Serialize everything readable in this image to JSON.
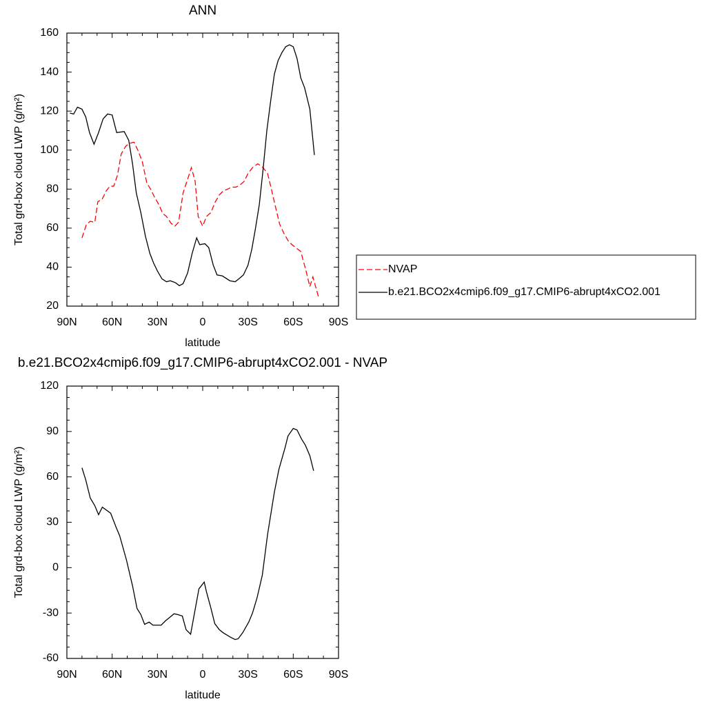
{
  "chart_data": [
    {
      "type": "line",
      "title": "ANN",
      "x_label": "latitude",
      "y_label": "Total grd-box cloud LWP (g/m²)",
      "xlim": [
        90,
        -90
      ],
      "xticks": [
        {
          "value": 90,
          "label": "90N"
        },
        {
          "value": 60,
          "label": "60N"
        },
        {
          "value": 30,
          "label": "30N"
        },
        0,
        {
          "value": -30,
          "label": "30S"
        },
        {
          "value": -60,
          "label": "60S"
        },
        {
          "value": -90,
          "label": "90S"
        }
      ],
      "ylim": [
        20,
        160
      ],
      "yticks": [
        20,
        40,
        60,
        80,
        100,
        120,
        140,
        160
      ],
      "legend": "right",
      "series": [
        {
          "name": "NVAP",
          "color": "#ff0000",
          "style": "dashed",
          "x": [
            80,
            77,
            74.5,
            71.5,
            69.5,
            66.5,
            64,
            61.5,
            59,
            56.5,
            54,
            51,
            48.5,
            45.5,
            43,
            40,
            37,
            34.5,
            32,
            29,
            26.5,
            24,
            21,
            18.5,
            16,
            13,
            7.5,
            5,
            3,
            0,
            -2.5,
            -5.5,
            -8,
            -11,
            -13.5,
            -16.5,
            -19,
            -22,
            -24.5,
            -27.5,
            -30,
            -33,
            -36.5,
            -40,
            -43,
            -45.5,
            -48.5,
            -51,
            -54,
            -57,
            -60,
            -65,
            -68.5,
            -71,
            -73,
            -77
          ],
          "values": [
            55,
            62,
            63.5,
            63,
            73.5,
            75,
            79,
            81.5,
            81.5,
            87,
            98,
            102,
            103.5,
            104,
            100,
            94,
            83,
            80,
            76,
            72,
            67.5,
            66,
            62.5,
            61,
            63,
            78,
            91,
            84,
            66,
            61,
            66,
            68,
            73,
            77,
            79,
            80,
            81,
            81,
            82,
            84,
            88,
            91,
            93,
            91,
            88,
            80,
            70,
            62,
            57,
            53,
            51,
            48,
            38,
            30,
            35,
            24
          ]
        },
        {
          "name": "b.e21.BCO2x4cmip6.f09_g17.CMIP6-abrupt4xCO2.001",
          "color": "#000000",
          "style": "solid",
          "x": [
            88,
            85.5,
            83,
            80,
            77.5,
            75,
            72,
            69,
            66,
            63,
            60,
            57,
            52,
            49,
            46.5,
            44,
            41,
            38,
            35,
            32.5,
            30,
            27,
            24,
            21.5,
            18,
            15.5,
            13,
            10,
            7,
            4,
            2,
            -1.5,
            -4,
            -7,
            -9.5,
            -13,
            -18,
            -21.5,
            -24,
            -27,
            -30,
            -32.5,
            -35,
            -37.5,
            -40,
            -42.5,
            -45,
            -47.5,
            -50,
            -52.5,
            -55,
            -57.5,
            -60,
            -62.5,
            -65,
            -67.5,
            -71,
            -74
          ],
          "values": [
            119,
            118.5,
            122,
            121,
            117,
            109,
            103,
            109,
            116,
            118.5,
            118,
            109,
            109.5,
            105,
            93,
            78,
            68,
            56,
            47,
            42,
            38,
            34,
            32.5,
            33,
            32,
            30.5,
            31.5,
            37,
            47,
            55,
            51.5,
            52,
            50,
            41,
            36,
            35.5,
            33,
            32.5,
            34,
            36,
            41,
            49,
            60,
            72,
            90,
            110,
            125,
            139,
            146,
            150,
            153,
            154,
            153,
            147,
            137,
            132,
            121,
            97.5
          ]
        }
      ]
    },
    {
      "type": "line",
      "title": "b.e21.BCO2x4cmip6.f09_g17.CMIP6-abrupt4xCO2.001 - NVAP",
      "x_label": "latitude",
      "y_label": "Total grd-box cloud LWP (g/m²)",
      "xlim": [
        90,
        -90
      ],
      "xticks": [
        {
          "value": 90,
          "label": "90N"
        },
        {
          "value": 60,
          "label": "60N"
        },
        {
          "value": 30,
          "label": "30N"
        },
        0,
        {
          "value": -30,
          "label": "30S"
        },
        {
          "value": -60,
          "label": "60S"
        },
        {
          "value": -90,
          "label": "90S"
        }
      ],
      "ylim": [
        -60,
        120
      ],
      "yticks": [
        -60,
        -30,
        0,
        30,
        60,
        90,
        120
      ],
      "series": [
        {
          "color": "#000000",
          "style": "solid",
          "x": [
            80,
            77.5,
            74.5,
            71.5,
            69,
            66.5,
            61,
            57.5,
            55,
            50.5,
            46.5,
            43.5,
            41,
            38.5,
            35.5,
            33,
            27.5,
            24.5,
            22,
            19,
            16.5,
            13.5,
            11,
            8,
            2.5,
            -1,
            -2.5,
            -5.5,
            -8,
            -11,
            -13.5,
            -18.5,
            -21.5,
            -23.5,
            -26.5,
            -30.5,
            -33,
            -36,
            -39.5,
            -43,
            -47.5,
            -50.5,
            -54.5,
            -56.5,
            -60,
            -62.5,
            -65.5,
            -68,
            -71,
            -73.5
          ],
          "values": [
            66,
            58,
            46,
            41,
            35,
            40,
            36,
            27,
            21,
            5,
            -12,
            -27,
            -31,
            -37.5,
            -36,
            -38,
            -38,
            -35,
            -33,
            -30.5,
            -31,
            -32,
            -41,
            -44,
            -14,
            -9.5,
            -16,
            -27,
            -37,
            -41,
            -43,
            -46,
            -47.5,
            -47,
            -43,
            -36,
            -30,
            -20,
            -5,
            22,
            50,
            65,
            79,
            87,
            92,
            91,
            85,
            81,
            74,
            64
          ]
        }
      ]
    }
  ]
}
